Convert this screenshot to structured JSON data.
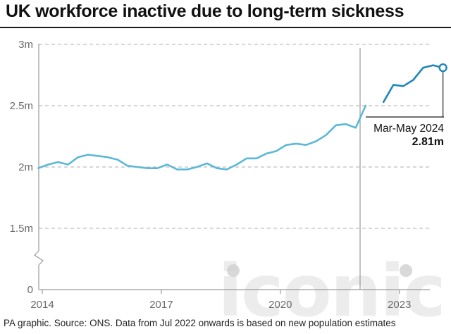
{
  "title": "UK workforce inactive due to long-term sickness",
  "source": "PA graphic. Source: ONS. Data from Jul 2022 onwards is based on new population estimates",
  "watermark": "iconic",
  "colors": {
    "line": "#5bb8d6",
    "line_new": "#1f86b8",
    "grid": "#bfbfbf",
    "axis_text": "#6b6b6b"
  },
  "chart_data": {
    "type": "line",
    "title": "UK workforce inactive due to long-term sickness",
    "xlabel": "",
    "ylabel": "",
    "y_ticks": [
      {
        "value": 0,
        "label": "0"
      },
      {
        "value": 1.5,
        "label": "1.5m"
      },
      {
        "value": 2,
        "label": "2m"
      },
      {
        "value": 2.5,
        "label": "2.5m"
      },
      {
        "value": 3,
        "label": "3m"
      }
    ],
    "x_ticks": [
      {
        "value": 2014,
        "label": "2014"
      },
      {
        "value": 2017,
        "label": "2017"
      },
      {
        "value": 2020,
        "label": "2020"
      },
      {
        "value": 2023,
        "label": "2023"
      }
    ],
    "ylim": [
      0,
      3
    ],
    "y_axis_break": true,
    "grid": "horizontal dashed",
    "series": [
      {
        "x": [
          2013.9,
          2014.15,
          2014.4,
          2014.65,
          2014.9,
          2015.15,
          2015.4,
          2015.65,
          2015.9,
          2016.15,
          2016.4,
          2016.65,
          2016.9,
          2017.15,
          2017.4,
          2017.65,
          2017.9,
          2018.15,
          2018.4,
          2018.65,
          2018.9,
          2019.15,
          2019.4,
          2019.65,
          2019.9,
          2020.15,
          2020.4,
          2020.65,
          2020.9,
          2021.15,
          2021.4,
          2021.65,
          2021.9,
          2022.15,
          2022.4
        ],
        "values": [
          1.99,
          2.02,
          2.04,
          2.02,
          2.08,
          2.1,
          2.09,
          2.08,
          2.06,
          2.01,
          2.0,
          1.99,
          1.99,
          2.02,
          1.98,
          1.98,
          2.0,
          2.03,
          1.99,
          1.98,
          2.02,
          2.07,
          2.07,
          2.11,
          2.13,
          2.18,
          2.19,
          2.18,
          2.21,
          2.26,
          2.34,
          2.35,
          2.32,
          2.5,
          null
        ]
      },
      {
        "x": [
          2022.6,
          2022.85,
          2023.1,
          2023.35,
          2023.6,
          2023.85,
          2024.1
        ],
        "values": [
          2.53,
          2.67,
          2.66,
          2.71,
          2.81,
          2.83,
          2.81
        ]
      }
    ],
    "annotation": {
      "label": "Mar-May 2024",
      "value_label": "2.81m",
      "x": 2024.1,
      "y": 2.81
    }
  }
}
